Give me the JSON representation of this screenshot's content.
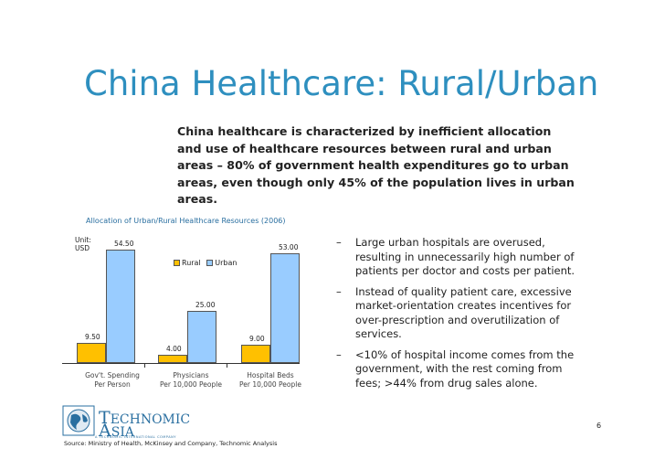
{
  "slide": {
    "title": "China Healthcare: Rural/Urban",
    "intro": "China healthcare is characterized by inefficient allocation and use of healthcare resources between rural and urban areas – 80% of government health expenditures go to urban areas, even though only 45% of the population lives in urban areas.",
    "page_number": "6",
    "source": "Source: Ministry of Health, McKinsey and Company, Technomic Analysis"
  },
  "logo": {
    "word1": "ECHNOMIC",
    "word1_initial": "T",
    "word2": "SIA",
    "word2_initial": "A",
    "tagline": "A TECHNOMIC INTERNATIONAL COMPANY",
    "color": "#2a6fa0"
  },
  "bullets": [
    {
      "marker": "–",
      "text": "Large urban hospitals are overused, resulting in unnecessarily high number of patients per doctor and costs per patient."
    },
    {
      "marker": "–",
      "text": "Instead of quality patient care, excessive market-orientation creates incentives for over-prescription and overutilization of services."
    },
    {
      "marker": "–",
      "text": "<10% of hospital income comes from the government, with the rest coming from fees;  >44% from drug sales alone."
    }
  ],
  "chart_data": {
    "type": "bar",
    "title": "Allocation of Urban/Rural Healthcare Resources (2006)",
    "unit_label": "Unit:\nUSD",
    "categories": [
      {
        "line1": "Gov't. Spending",
        "line2": "Per Person"
      },
      {
        "line1": "Physicians",
        "line2": "Per 10,000 People"
      },
      {
        "line1": "Hospital Beds",
        "line2": "Per 10,000 People"
      }
    ],
    "series": [
      {
        "name": "Rural",
        "color": "#ffc000",
        "values": [
          9.5,
          4.0,
          9.0
        ],
        "labels": [
          "9.50",
          "4.00",
          "9.00"
        ]
      },
      {
        "name": "Urban",
        "color": "#99ccff",
        "values": [
          54.5,
          25.0,
          53.0
        ],
        "labels": [
          "54.50",
          "25.00",
          "53.00"
        ]
      }
    ],
    "ylim": [
      0,
      55
    ],
    "legend_position": "top-center",
    "grid": false
  }
}
